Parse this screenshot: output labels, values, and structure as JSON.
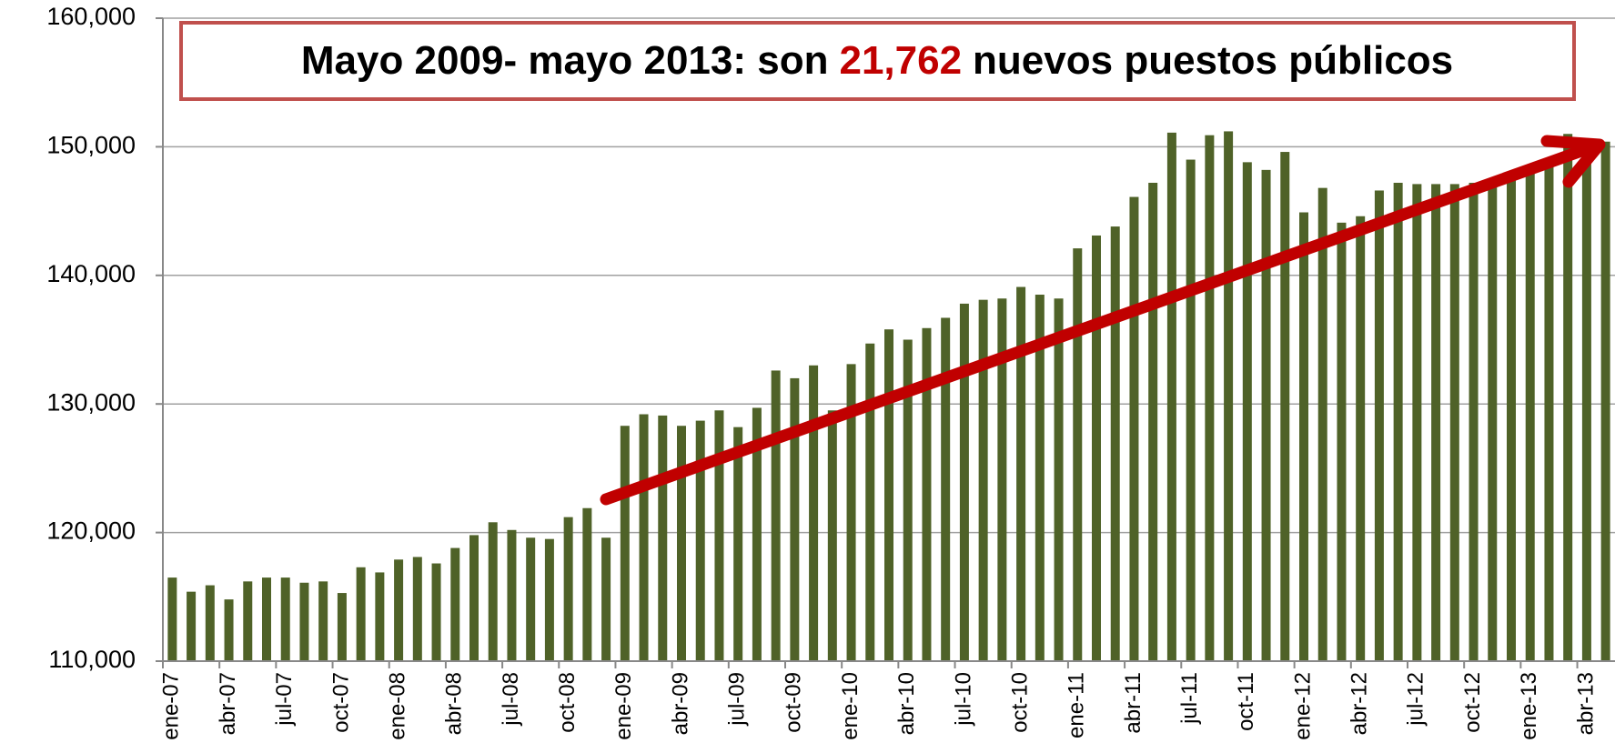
{
  "chart_data": {
    "type": "bar",
    "annotation": {
      "before": "Mayo 2009- mayo 2013: son",
      "highlight": "21,762",
      "after": "nuevos puestos públicos"
    },
    "color": "#4f6228",
    "highlight_color": "#c00000",
    "grid": true,
    "categories": [
      "ene-07",
      null,
      null,
      "abr-07",
      null,
      null,
      "jul-07",
      null,
      null,
      "oct-07",
      null,
      null,
      "ene-08",
      null,
      null,
      "abr-08",
      null,
      null,
      "jul-08",
      null,
      null,
      "oct-08",
      null,
      null,
      "ene-09",
      null,
      null,
      "abr-09",
      null,
      null,
      "jul-09",
      null,
      null,
      "oct-09",
      null,
      null,
      "ene-10",
      null,
      null,
      "abr-10",
      null,
      null,
      "jul-10",
      null,
      null,
      "oct-10",
      null,
      null,
      "ene-11",
      null,
      null,
      "abr-11",
      null,
      null,
      "jul-11",
      null,
      null,
      "oct-11",
      null,
      null,
      "ene-12",
      null,
      null,
      "abr-12",
      null,
      null,
      "jul-12",
      null,
      null,
      "oct-12",
      null,
      null,
      "ene-13",
      null,
      null,
      "abr-13",
      null
    ],
    "values": [
      116500,
      115400,
      115900,
      114800,
      116200,
      116500,
      116500,
      116100,
      116200,
      115300,
      117300,
      116900,
      117900,
      118100,
      117600,
      118800,
      119800,
      120800,
      120200,
      119600,
      119500,
      121200,
      121900,
      119600,
      128300,
      129200,
      129100,
      128300,
      128700,
      129500,
      128200,
      129700,
      132600,
      132000,
      133000,
      129500,
      133100,
      134700,
      135800,
      135000,
      135900,
      136700,
      137800,
      138100,
      138200,
      139100,
      138500,
      138200,
      142100,
      143100,
      143800,
      146100,
      147200,
      151100,
      149000,
      150900,
      151200,
      148800,
      148200,
      149600,
      144900,
      146800,
      144100,
      144600,
      146600,
      147200,
      147100,
      147100,
      147100,
      147200,
      147400,
      147600,
      148200,
      149000,
      151000,
      150600,
      150400
    ],
    "ylim": [
      110000,
      160000
    ],
    "yticks": [
      {
        "value": 110000,
        "label": "110,000"
      },
      {
        "value": 120000,
        "label": "120,000"
      },
      {
        "value": 130000,
        "label": "130,000"
      },
      {
        "value": 140000,
        "label": "140,000"
      },
      {
        "value": 150000,
        "label": "150,000"
      },
      {
        "value": 160000,
        "label": "160,000"
      }
    ]
  }
}
